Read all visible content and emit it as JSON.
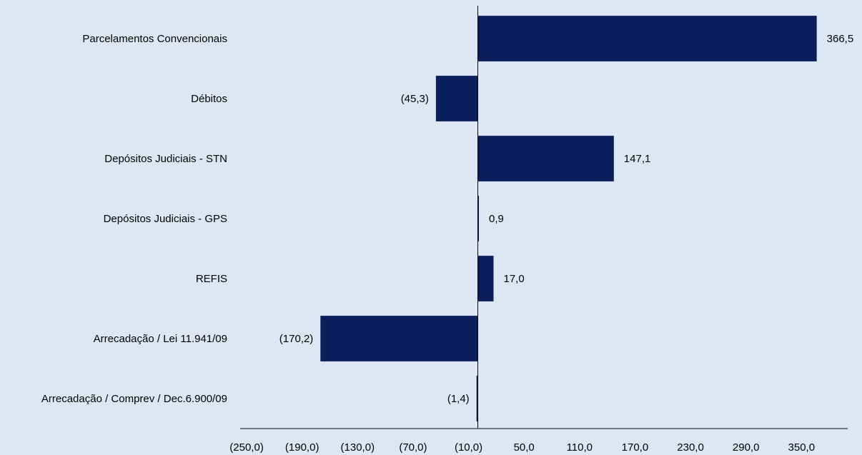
{
  "chart_data": {
    "type": "bar",
    "orientation": "horizontal",
    "categories": [
      "Parcelamentos Convencionais",
      "Débitos",
      "Depósitos Judiciais - STN",
      "Depósitos Judiciais - GPS",
      "REFIS",
      "Arrecadação / Lei 11.941/09",
      "Arrecadação / Comprev / Dec.6.900/09"
    ],
    "values": [
      366.5,
      -45.3,
      147.1,
      0.9,
      17.0,
      -170.2,
      -1.4
    ],
    "data_labels": [
      "366,5",
      "(45,3)",
      "147,1",
      "0,9",
      "17,0",
      "(170,2)",
      "(1,4)"
    ],
    "x_ticks": [
      -250,
      -190,
      -130,
      -70,
      -10,
      50,
      110,
      170,
      230,
      290,
      350
    ],
    "x_tick_labels": [
      "(250,0)",
      "(190,0)",
      "(130,0)",
      "(70,0)",
      "(10,0)",
      "50,0",
      "110,0",
      "170,0",
      "230,0",
      "290,0",
      "350,0"
    ],
    "xlim": [
      -257,
      400
    ],
    "title": "",
    "xlabel": "",
    "ylabel": "",
    "grid": false,
    "legend": "none",
    "colors": {
      "bar": "#0a1f5c",
      "axis": "#000000",
      "background": "#dde7f3"
    }
  }
}
